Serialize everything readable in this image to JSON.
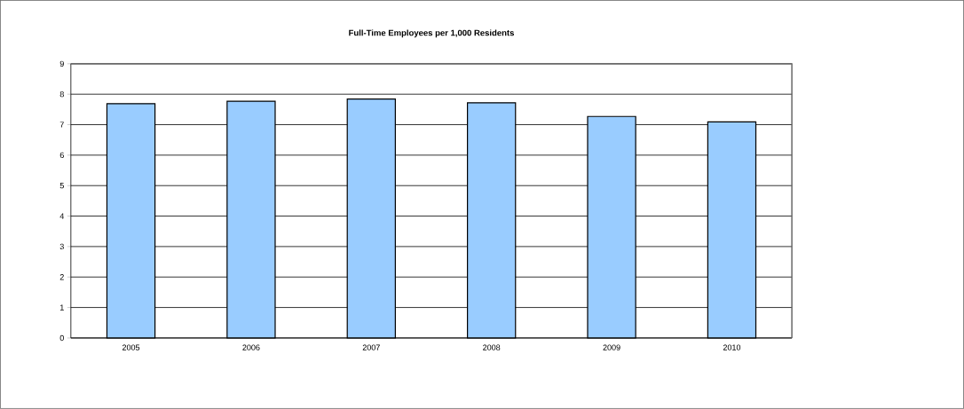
{
  "chart_data": {
    "type": "bar",
    "title": "Full-Time Employees per 1,000 Residents",
    "categories": [
      "2005",
      "2006",
      "2007",
      "2008",
      "2009",
      "2010"
    ],
    "values": [
      7.69,
      7.77,
      7.84,
      7.72,
      7.27,
      7.09
    ],
    "color": "#99ccff",
    "ylim": [
      0,
      9
    ],
    "yticks": [
      0,
      1,
      2,
      3,
      4,
      5,
      6,
      7,
      8,
      9
    ],
    "grid": "y"
  }
}
